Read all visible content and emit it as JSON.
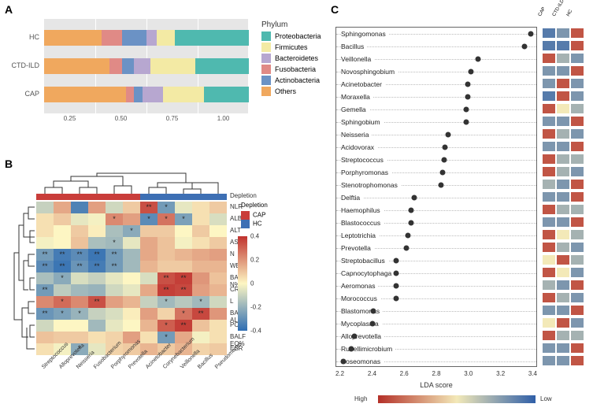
{
  "panelA": {
    "label": "A",
    "phylum_legend_title": "Phylum",
    "phyla": [
      "Proteobacteria",
      "Firmicutes",
      "Bacteroidetes",
      "Fusobacteria",
      "Actinobacteria",
      "Others"
    ],
    "phyla_colors": [
      "#4fb9af",
      "#f3eaa4",
      "#b7a7d0",
      "#e08a86",
      "#6b92c5",
      "#f0a85e"
    ],
    "groups": [
      "HC",
      "CTD-ILD",
      "CAP"
    ],
    "values": {
      "HC": [
        0.28,
        0.1,
        0.12,
        0.02,
        0.03,
        0.05,
        0.04,
        0.1,
        0.26
      ],
      "CTD-ILD": [
        0.32,
        0.06,
        0.06,
        0.04,
        0.04,
        0.12,
        0.1,
        0.04,
        0.22
      ],
      "CAP": [
        0.4,
        0.04,
        0.04,
        0.06,
        0.04,
        0.06,
        0.14,
        0.04,
        0.18
      ]
    },
    "seg_colors": [
      "#f0a85e",
      "#e08a86",
      "#6b92c5",
      "#b7a7d0",
      "#b7a7d0",
      "#f3eaa4",
      "#f3eaa4",
      "#4fb9af",
      "#4fb9af"
    ],
    "xticks": [
      "0.25",
      "0.50",
      "0.75",
      "1.00"
    ],
    "plot_bg": "#e6e6e6",
    "grid_color": "#ffffff"
  },
  "panelB": {
    "label": "B",
    "depletion_title": "Depletion",
    "depletion_groups": [
      "CAP",
      "HC"
    ],
    "depletion_colors": [
      "#c93d3a",
      "#3d6fb4"
    ],
    "row_vars": [
      "NLR",
      "ALB",
      "ALT",
      "AST",
      "N",
      "WBC",
      "BALF N%",
      "CRP",
      "L",
      "BALF ALB",
      "PCT",
      "BALF EO%",
      "ESR"
    ],
    "col_taxa": [
      "Streptococcus",
      "Alloprevotella",
      "Neisseria",
      "Fusobacterium",
      "Porphyromonas",
      "Prevotella",
      "Acinetobacter",
      "Corynebacterium",
      "Veillonella",
      "Bacillus",
      "Pseudomonas"
    ],
    "col_depletion": [
      "CAP",
      "CAP",
      "CAP",
      "CAP",
      "CAP",
      "CAP",
      "HC",
      "HC",
      "HC",
      "HC",
      "HC"
    ],
    "colorbar_ticks": [
      "0.4",
      "0.2",
      "0",
      "-0.2",
      "-0.4"
    ],
    "heat_colormap": {
      "low": "#2e6db3",
      "mid": "#fdf6c3",
      "high": "#c0322e"
    },
    "values": [
      [
        -0.12,
        0.18,
        -0.38,
        0.2,
        -0.1,
        0.1,
        0.38,
        -0.3,
        -0.05,
        0.05,
        0.1
      ],
      [
        0.05,
        0.1,
        -0.05,
        -0.02,
        0.25,
        0.2,
        -0.35,
        0.3,
        -0.28,
        0.05,
        -0.08
      ],
      [
        0.05,
        0.0,
        0.1,
        0.02,
        -0.18,
        -0.25,
        0.1,
        0.1,
        0.0,
        0.1,
        0.0
      ],
      [
        -0.02,
        0.0,
        0.12,
        -0.18,
        -0.2,
        -0.05,
        0.18,
        0.12,
        -0.02,
        0.05,
        0.1
      ],
      [
        -0.3,
        -0.4,
        -0.35,
        -0.42,
        -0.3,
        -0.2,
        0.18,
        0.12,
        0.15,
        0.18,
        0.2
      ],
      [
        -0.35,
        -0.42,
        -0.32,
        -0.4,
        -0.3,
        -0.2,
        0.15,
        0.1,
        0.1,
        0.15,
        0.15
      ],
      [
        -0.18,
        -0.25,
        -0.08,
        -0.12,
        -0.05,
        0.0,
        -0.08,
        0.38,
        0.42,
        0.22,
        0.12
      ],
      [
        -0.3,
        -0.14,
        -0.2,
        -0.22,
        -0.1,
        -0.05,
        0.18,
        0.42,
        0.4,
        0.2,
        0.15
      ],
      [
        0.25,
        0.32,
        0.25,
        0.38,
        0.2,
        0.15,
        -0.12,
        -0.2,
        -0.15,
        -0.2,
        -0.1
      ],
      [
        -0.32,
        -0.28,
        -0.22,
        -0.12,
        -0.08,
        0.02,
        0.2,
        0.08,
        0.3,
        0.4,
        0.22
      ],
      [
        -0.1,
        0.0,
        0.0,
        -0.2,
        -0.05,
        0.0,
        0.15,
        0.35,
        0.42,
        0.12,
        0.05
      ],
      [
        0.12,
        0.1,
        0.1,
        0.05,
        0.08,
        0.2,
        0.05,
        -0.3,
        0.18,
        -0.02,
        0.05
      ],
      [
        0.05,
        -0.02,
        -0.25,
        -0.05,
        0.08,
        0.1,
        0.15,
        0.1,
        0.15,
        0.08,
        0.1
      ]
    ],
    "sig": [
      [
        "",
        "",
        "",
        "",
        "",
        "",
        "**",
        "*",
        "",
        "",
        ""
      ],
      [
        "",
        "",
        "",
        "",
        "*",
        "",
        "*",
        "*",
        "*",
        "",
        ""
      ],
      [
        "",
        "",
        "",
        "",
        "",
        "*",
        "",
        "",
        "",
        "",
        ""
      ],
      [
        "",
        "",
        "",
        "",
        "*",
        "",
        "",
        "",
        "",
        "",
        ""
      ],
      [
        "**",
        "**",
        "**",
        "**",
        "**",
        "",
        "",
        "",
        "",
        "",
        ""
      ],
      [
        "**",
        "**",
        "**",
        "**",
        "**",
        "",
        "",
        "",
        "",
        "",
        ""
      ],
      [
        "",
        "*",
        "",
        "",
        "",
        "",
        "",
        "**",
        "**",
        "",
        ""
      ],
      [
        "**",
        "",
        "",
        "",
        "",
        "",
        "",
        "**",
        "**",
        "",
        ""
      ],
      [
        "",
        "*",
        "",
        "**",
        "",
        "",
        "",
        "*",
        "",
        "*",
        ""
      ],
      [
        "**",
        "*",
        "*",
        "",
        "",
        "",
        "",
        "",
        "*",
        "**",
        ""
      ],
      [
        "",
        "",
        "",
        "",
        "",
        "",
        "",
        "*",
        "**",
        "",
        ""
      ],
      [
        "",
        "",
        "",
        "",
        "",
        "",
        "",
        "*",
        "",
        "",
        ""
      ],
      [
        "",
        "",
        "*",
        "",
        "",
        "",
        "",
        "",
        "",
        "",
        ""
      ]
    ]
  },
  "panelC": {
    "label": "C",
    "y_names": [
      "Sphingomonas",
      "Bacillus",
      "Veillonella",
      "Novosphingobium",
      "Acinetobacter",
      "Moraxella",
      "Gemella",
      "Sphingobium",
      "Neisseria",
      "Acidovorax",
      "Streptococcus",
      "Porphyromonas",
      "Stenotrophomonas",
      "Delftia",
      "Haemophilus",
      "Blastococcus",
      "Leptotrichia",
      "Prevotella",
      "Streptobacillus",
      "Capnocytophaga",
      "Aeromonas",
      "Morococcus",
      "Blastomonas",
      "Mycoplasma",
      "Alloprevotella",
      "Rubellimicrobium",
      "Roseomonas"
    ],
    "lda_scores": [
      3.4,
      3.36,
      3.05,
      3.0,
      2.98,
      2.98,
      2.97,
      2.97,
      2.85,
      2.83,
      2.82,
      2.81,
      2.8,
      2.62,
      2.6,
      2.6,
      2.58,
      2.57,
      2.5,
      2.5,
      2.5,
      2.5,
      2.35,
      2.34,
      2.22,
      2.2,
      2.15
    ],
    "x_ticks": [
      "2.2",
      "2.4",
      "2.6",
      "2.8",
      "3.0",
      "3.2",
      "3.4"
    ],
    "x_min": 2.1,
    "x_max": 3.45,
    "xlabel": "LDA score",
    "dot_color": "#333333",
    "mini_headers": [
      "CAP",
      "CTD-ILD",
      "HC"
    ],
    "mini_colormap": {
      "high": "#b43028",
      "mid": "#f3e9b8",
      "low": "#2f5fa8"
    },
    "mini_values": [
      [
        0.1,
        0.2,
        0.9
      ],
      [
        0.1,
        0.1,
        0.9
      ],
      [
        0.9,
        0.3,
        0.2
      ],
      [
        0.2,
        0.2,
        0.9
      ],
      [
        0.2,
        0.9,
        0.2
      ],
      [
        0.1,
        0.9,
        0.2
      ],
      [
        0.9,
        0.5,
        0.3
      ],
      [
        0.2,
        0.2,
        0.9
      ],
      [
        0.9,
        0.3,
        0.2
      ],
      [
        0.2,
        0.2,
        0.9
      ],
      [
        0.9,
        0.3,
        0.3
      ],
      [
        0.9,
        0.3,
        0.2
      ],
      [
        0.3,
        0.2,
        0.9
      ],
      [
        0.2,
        0.2,
        0.9
      ],
      [
        0.9,
        0.3,
        0.3
      ],
      [
        0.2,
        0.2,
        0.9
      ],
      [
        0.9,
        0.5,
        0.3
      ],
      [
        0.9,
        0.3,
        0.2
      ],
      [
        0.5,
        0.9,
        0.3
      ],
      [
        0.9,
        0.5,
        0.2
      ],
      [
        0.3,
        0.2,
        0.9
      ],
      [
        0.9,
        0.3,
        0.2
      ],
      [
        0.2,
        0.2,
        0.9
      ],
      [
        0.5,
        0.9,
        0.2
      ],
      [
        0.9,
        0.3,
        0.3
      ],
      [
        0.2,
        0.2,
        0.9
      ],
      [
        0.2,
        0.2,
        0.9
      ]
    ],
    "gradient_labels": {
      "high": "High",
      "low": "Low"
    }
  }
}
